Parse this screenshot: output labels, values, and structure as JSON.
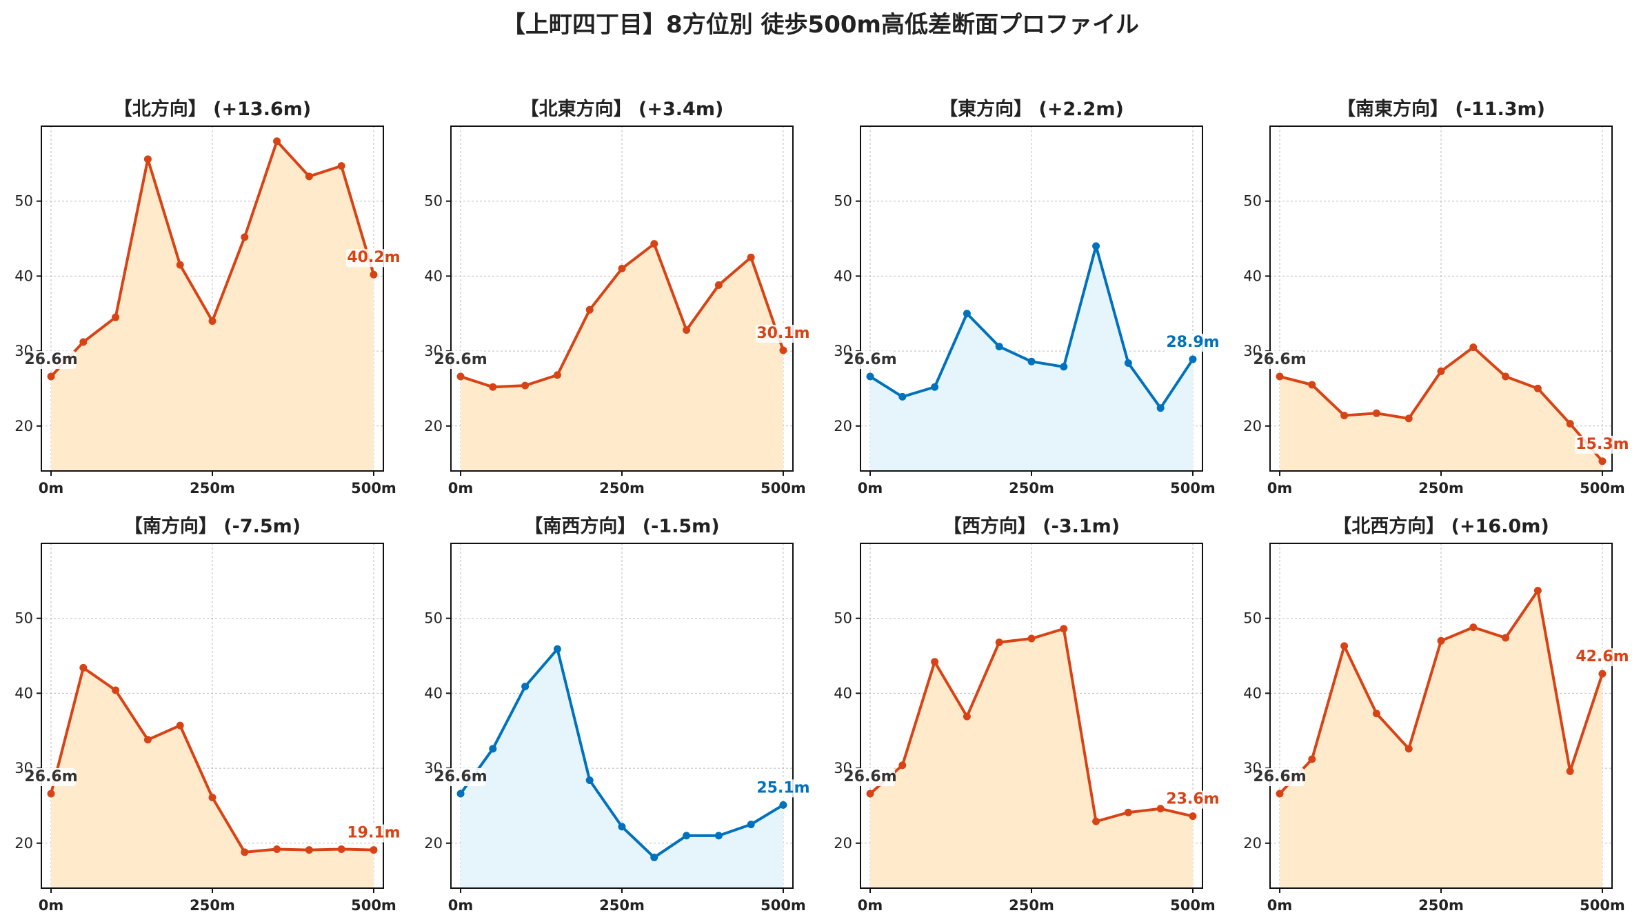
{
  "figure": {
    "title": "【上町四丁目】8方位別 徒歩500m高低差断面プロファイル"
  },
  "colors": {
    "up_line": "#d84315",
    "up_fill": "#ffebcc",
    "down_line": "#0072bd",
    "down_fill": "#e6f5fc",
    "start_label": "#333333",
    "grid": "#bbbbbb"
  },
  "chart_data": [
    {
      "type": "area",
      "title": "【北方向】 (+13.6m)",
      "trend": "up",
      "x": [
        0,
        50,
        100,
        150,
        200,
        250,
        300,
        350,
        400,
        450,
        500
      ],
      "y": [
        26.6,
        31.2,
        34.5,
        55.6,
        41.5,
        34.0,
        45.2,
        58.0,
        53.3,
        54.7,
        40.2
      ],
      "xticks": [
        "0m",
        "250m",
        "500m"
      ],
      "yticks": [
        20,
        30,
        40,
        50
      ],
      "xlim": [
        -15,
        515
      ],
      "ylim": [
        14,
        60
      ],
      "start_label": "26.6m",
      "end_label": "40.2m",
      "grid": true
    },
    {
      "type": "area",
      "title": "【北東方向】 (+3.4m)",
      "trend": "up",
      "x": [
        0,
        50,
        100,
        150,
        200,
        250,
        300,
        350,
        400,
        450,
        500
      ],
      "y": [
        26.6,
        25.2,
        25.4,
        26.8,
        35.5,
        41.0,
        44.3,
        32.8,
        38.8,
        42.5,
        30.1
      ],
      "xticks": [
        "0m",
        "250m",
        "500m"
      ],
      "yticks": [
        20,
        30,
        40,
        50
      ],
      "xlim": [
        -15,
        515
      ],
      "ylim": [
        14,
        60
      ],
      "start_label": "26.6m",
      "end_label": "30.1m",
      "grid": true
    },
    {
      "type": "area",
      "title": "【東方向】 (+2.2m)",
      "trend": "down",
      "x": [
        0,
        50,
        100,
        150,
        200,
        250,
        300,
        350,
        400,
        450,
        500
      ],
      "y": [
        26.6,
        23.9,
        25.2,
        35.0,
        30.6,
        28.6,
        27.9,
        44.0,
        28.4,
        22.4,
        28.9
      ],
      "xticks": [
        "0m",
        "250m",
        "500m"
      ],
      "yticks": [
        20,
        30,
        40,
        50
      ],
      "xlim": [
        -15,
        515
      ],
      "ylim": [
        14,
        60
      ],
      "start_label": "26.6m",
      "end_label": "28.9m",
      "grid": true
    },
    {
      "type": "area",
      "title": "【南東方向】 (-11.3m)",
      "trend": "up",
      "x": [
        0,
        50,
        100,
        150,
        200,
        250,
        300,
        350,
        400,
        450,
        500
      ],
      "y": [
        26.6,
        25.5,
        21.4,
        21.7,
        21.0,
        27.3,
        30.5,
        26.6,
        25.0,
        20.3,
        15.3
      ],
      "xticks": [
        "0m",
        "250m",
        "500m"
      ],
      "yticks": [
        20,
        30,
        40,
        50
      ],
      "xlim": [
        -15,
        515
      ],
      "ylim": [
        14,
        60
      ],
      "start_label": "26.6m",
      "end_label": "15.3m",
      "grid": true
    },
    {
      "type": "area",
      "title": "【南方向】 (-7.5m)",
      "trend": "up",
      "x": [
        0,
        50,
        100,
        150,
        200,
        250,
        300,
        350,
        400,
        450,
        500
      ],
      "y": [
        26.6,
        43.4,
        40.4,
        33.8,
        35.7,
        26.1,
        18.8,
        19.2,
        19.1,
        19.2,
        19.1
      ],
      "xticks": [
        "0m",
        "250m",
        "500m"
      ],
      "yticks": [
        20,
        30,
        40,
        50
      ],
      "xlim": [
        -15,
        515
      ],
      "ylim": [
        14,
        60
      ],
      "start_label": "26.6m",
      "end_label": "19.1m",
      "grid": true
    },
    {
      "type": "area",
      "title": "【南西方向】 (-1.5m)",
      "trend": "down",
      "x": [
        0,
        50,
        100,
        150,
        200,
        250,
        300,
        350,
        400,
        450,
        500
      ],
      "y": [
        26.6,
        32.6,
        40.9,
        45.9,
        28.4,
        22.2,
        18.1,
        21.0,
        21.0,
        22.5,
        25.1
      ],
      "xticks": [
        "0m",
        "250m",
        "500m"
      ],
      "yticks": [
        20,
        30,
        40,
        50
      ],
      "xlim": [
        -15,
        515
      ],
      "ylim": [
        14,
        60
      ],
      "start_label": "26.6m",
      "end_label": "25.1m",
      "grid": true
    },
    {
      "type": "area",
      "title": "【西方向】 (-3.1m)",
      "trend": "up",
      "x": [
        0,
        50,
        100,
        150,
        200,
        250,
        300,
        350,
        400,
        450,
        500
      ],
      "y": [
        26.6,
        30.4,
        44.2,
        36.9,
        46.8,
        47.3,
        48.6,
        22.9,
        24.1,
        24.6,
        23.6
      ],
      "xticks": [
        "0m",
        "250m",
        "500m"
      ],
      "yticks": [
        20,
        30,
        40,
        50
      ],
      "xlim": [
        -15,
        515
      ],
      "ylim": [
        14,
        60
      ],
      "start_label": "26.6m",
      "end_label": "23.6m",
      "grid": true
    },
    {
      "type": "area",
      "title": "【北西方向】 (+16.0m)",
      "trend": "up",
      "x": [
        0,
        50,
        100,
        150,
        200,
        250,
        300,
        350,
        400,
        450,
        500
      ],
      "y": [
        26.6,
        31.2,
        46.3,
        37.3,
        32.6,
        47.0,
        48.8,
        47.4,
        53.7,
        29.6,
        42.6
      ],
      "xticks": [
        "0m",
        "250m",
        "500m"
      ],
      "yticks": [
        20,
        30,
        40,
        50
      ],
      "xlim": [
        -15,
        515
      ],
      "ylim": [
        14,
        60
      ],
      "start_label": "26.6m",
      "end_label": "42.6m",
      "grid": true
    }
  ]
}
